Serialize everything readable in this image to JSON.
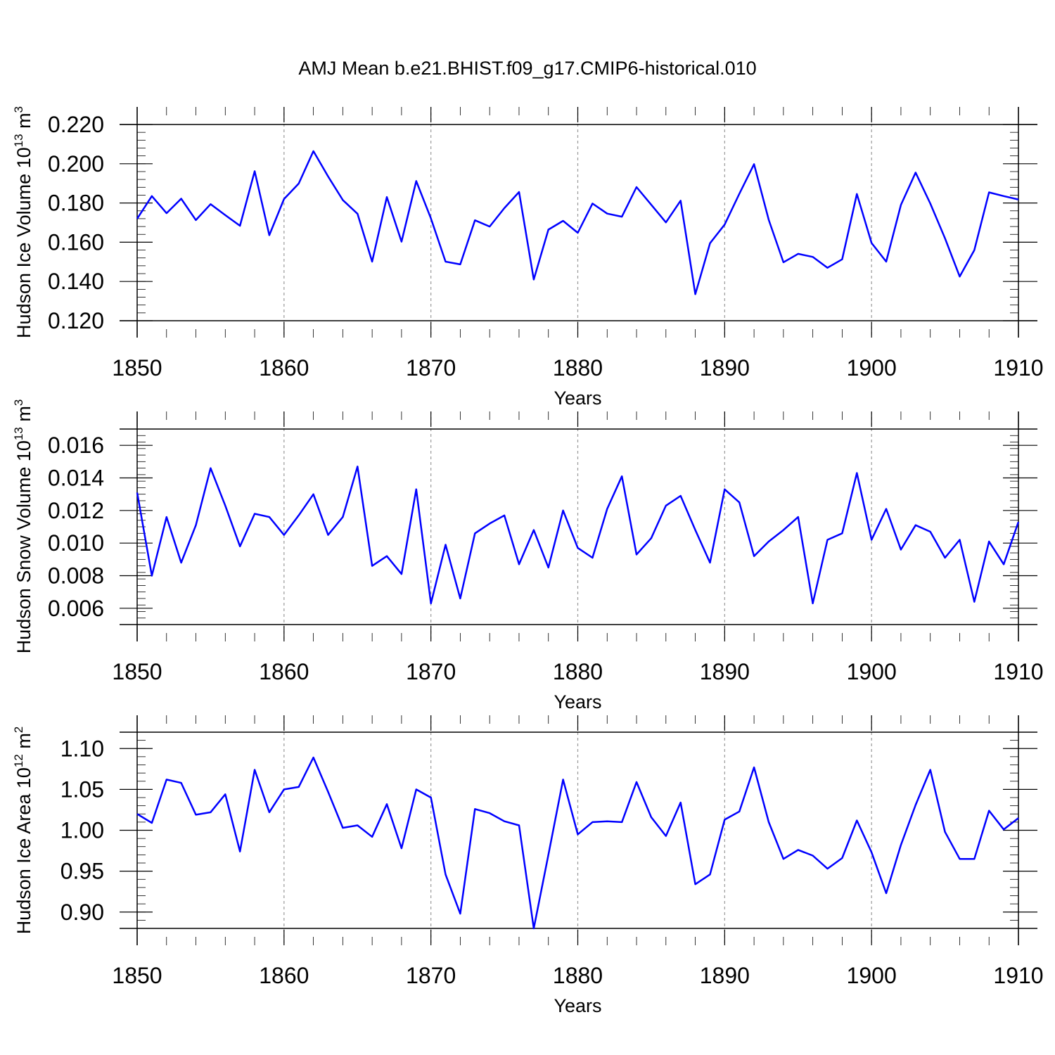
{
  "title": "AMJ Mean b.e21.BHIST.f09_g17.CMIP6-historical.010",
  "chart_data": [
    {
      "type": "line",
      "ylabel": "Hudson Ice Volume 10",
      "ylabel_exp": "13",
      "ylabel_unit": " m",
      "ylabel_unit_exp": "3",
      "xlabel": "Years",
      "xlim": [
        1850,
        1910
      ],
      "ylim": [
        0.12,
        0.22
      ],
      "x_ticks": [
        "1850",
        "1860",
        "1870",
        "1880",
        "1890",
        "1900",
        "1910"
      ],
      "y_ticks": [
        "0.120",
        "0.140",
        "0.160",
        "0.180",
        "0.200",
        "0.220"
      ],
      "grid": "dashed vertical lines at 1860, 1870, 1880, 1890, 1900",
      "color": "#0000ff",
      "x_start": 1850,
      "values": [
        0.172,
        0.1835,
        0.1748,
        0.1822,
        0.1713,
        0.1794,
        0.1738,
        0.1684,
        0.1962,
        0.1636,
        0.182,
        0.1899,
        0.2064,
        0.1935,
        0.1815,
        0.1745,
        0.1501,
        0.183,
        0.1603,
        0.1912,
        0.1721,
        0.1501,
        0.1487,
        0.1712,
        0.168,
        0.1774,
        0.1856,
        0.141,
        0.1664,
        0.1709,
        0.1648,
        0.1797,
        0.1746,
        0.173,
        0.1881,
        0.1791,
        0.1701,
        0.1812,
        0.1335,
        0.1595,
        0.169,
        0.1847,
        0.1998,
        0.1714,
        0.1498,
        0.1541,
        0.1525,
        0.147,
        0.1513,
        0.1846,
        0.1596,
        0.1501,
        0.179,
        0.1955,
        0.1797,
        0.162,
        0.1425,
        0.156,
        0.1854,
        0.1835,
        0.1818
      ]
    },
    {
      "type": "line",
      "ylabel": "Hudson Snow Volume 10",
      "ylabel_exp": "13",
      "ylabel_unit": " m",
      "ylabel_unit_exp": "3",
      "xlabel": "Years",
      "xlim": [
        1850,
        1910
      ],
      "ylim": [
        0.005,
        0.017
      ],
      "x_ticks": [
        "1850",
        "1860",
        "1870",
        "1880",
        "1890",
        "1900",
        "1910"
      ],
      "y_ticks": [
        "0.006",
        "0.008",
        "0.010",
        "0.012",
        "0.014",
        "0.016"
      ],
      "grid": "dashed vertical lines at 1860, 1870, 1880, 1890, 1900",
      "color": "#0000ff",
      "x_start": 1850,
      "values": [
        0.0131,
        0.008,
        0.0116,
        0.0088,
        0.0111,
        0.0146,
        0.0123,
        0.0098,
        0.0118,
        0.0116,
        0.0105,
        0.0117,
        0.013,
        0.0105,
        0.0116,
        0.0147,
        0.0086,
        0.0092,
        0.0081,
        0.0133,
        0.0063,
        0.0099,
        0.0066,
        0.0106,
        0.0112,
        0.0117,
        0.0087,
        0.0108,
        0.0085,
        0.012,
        0.0097,
        0.0091,
        0.0121,
        0.0141,
        0.0093,
        0.0103,
        0.0123,
        0.0129,
        0.0108,
        0.0088,
        0.0133,
        0.0125,
        0.0092,
        0.0101,
        0.0108,
        0.0116,
        0.0063,
        0.0102,
        0.0106,
        0.0143,
        0.0102,
        0.0121,
        0.0096,
        0.0111,
        0.0107,
        0.0091,
        0.0102,
        0.0064,
        0.0101,
        0.0087,
        0.0113
      ]
    },
    {
      "type": "line",
      "ylabel": "Hudson Ice Area 10",
      "ylabel_exp": "12",
      "ylabel_unit": " m",
      "ylabel_unit_exp": "2",
      "xlabel": "Years",
      "xlim": [
        1850,
        1910
      ],
      "ylim": [
        0.88,
        1.12
      ],
      "x_ticks": [
        "1850",
        "1860",
        "1870",
        "1880",
        "1890",
        "1900",
        "1910"
      ],
      "y_ticks": [
        "0.90",
        "0.95",
        "1.00",
        "1.05",
        "1.10"
      ],
      "grid": "dashed vertical lines at 1860, 1870, 1880, 1890, 1900",
      "color": "#0000ff",
      "x_start": 1850,
      "values": [
        1.02,
        1.009,
        1.062,
        1.058,
        1.019,
        1.022,
        1.044,
        0.974,
        1.074,
        1.022,
        1.05,
        1.053,
        1.089,
        1.047,
        1.003,
        1.006,
        0.992,
        1.032,
        0.978,
        1.05,
        1.04,
        0.946,
        0.898,
        1.026,
        1.021,
        1.011,
        1.006,
        0.88,
        0.97,
        1.062,
        0.995,
        1.01,
        1.011,
        1.01,
        1.059,
        1.016,
        0.993,
        1.034,
        0.934,
        0.946,
        1.013,
        1.023,
        1.077,
        1.01,
        0.965,
        0.976,
        0.969,
        0.953,
        0.966,
        1.012,
        0.973,
        0.923,
        0.982,
        1.031,
        1.074,
        0.998,
        0.965,
        0.965,
        1.024,
        1.001,
        1.015
      ]
    }
  ]
}
